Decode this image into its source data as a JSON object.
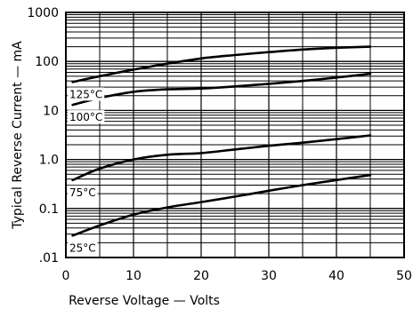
{
  "chart_data": {
    "type": "line",
    "title": "",
    "xlabel": "Reverse Voltage — Volts",
    "ylabel": "Typical Reverse Current — mA",
    "xlim": [
      0,
      50
    ],
    "ylim": [
      0.01,
      1000
    ],
    "y_scale": "log",
    "grid": true,
    "x_ticks": [
      0,
      10,
      20,
      30,
      40,
      50
    ],
    "x_tick_labels": [
      "0",
      "10",
      "20",
      "30",
      "40",
      "50"
    ],
    "y_ticks": [
      0.01,
      0.1,
      1,
      10,
      100,
      1000
    ],
    "y_tick_labels": [
      ".01",
      "0.1",
      "1.0",
      "10",
      "100",
      "1000"
    ],
    "series": [
      {
        "name": "125°C",
        "x": [
          1,
          5,
          10,
          15,
          20,
          25,
          30,
          35,
          40,
          45
        ],
        "y": [
          38,
          50,
          68,
          90,
          115,
          135,
          155,
          175,
          190,
          200
        ]
      },
      {
        "name": "100°C",
        "x": [
          1,
          5,
          10,
          15,
          20,
          25,
          30,
          35,
          40,
          45
        ],
        "y": [
          13,
          18,
          24,
          27,
          28,
          31,
          35,
          40,
          47,
          56
        ]
      },
      {
        "name": "75°C",
        "x": [
          1,
          5,
          10,
          15,
          20,
          25,
          30,
          35,
          40,
          45
        ],
        "y": [
          0.38,
          0.65,
          1.0,
          1.25,
          1.35,
          1.6,
          1.9,
          2.2,
          2.6,
          3.1
        ]
      },
      {
        "name": "25°C",
        "x": [
          1,
          5,
          10,
          15,
          20,
          25,
          30,
          35,
          40,
          45
        ],
        "y": [
          0.028,
          0.045,
          0.075,
          0.105,
          0.135,
          0.175,
          0.23,
          0.3,
          0.38,
          0.48
        ]
      }
    ]
  },
  "colors": {
    "ink": "#000000",
    "background": "#ffffff"
  }
}
